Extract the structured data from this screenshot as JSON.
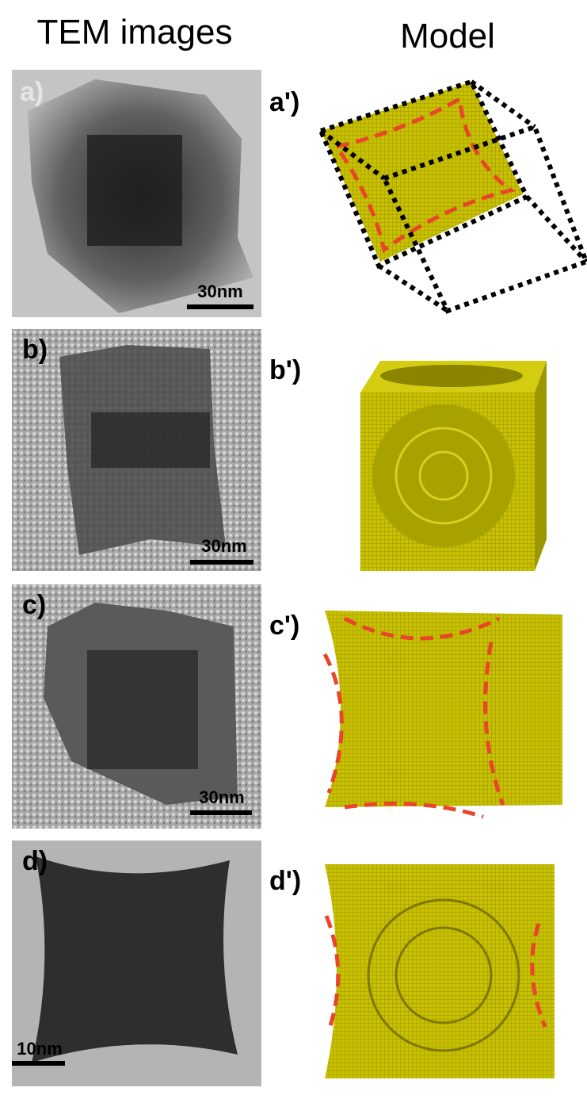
{
  "header": {
    "left": "TEM images",
    "right": "Model"
  },
  "panels": [
    {
      "tem_label": "a)",
      "scale_bar": "30nm",
      "model_label": "a')"
    },
    {
      "tem_label": "b)",
      "scale_bar": "30nm",
      "model_label": "b')"
    },
    {
      "tem_label": "c)",
      "scale_bar": "30nm",
      "model_label": "c')"
    },
    {
      "tem_label": "d)",
      "scale_bar": "10nm",
      "model_label": "d')"
    }
  ]
}
